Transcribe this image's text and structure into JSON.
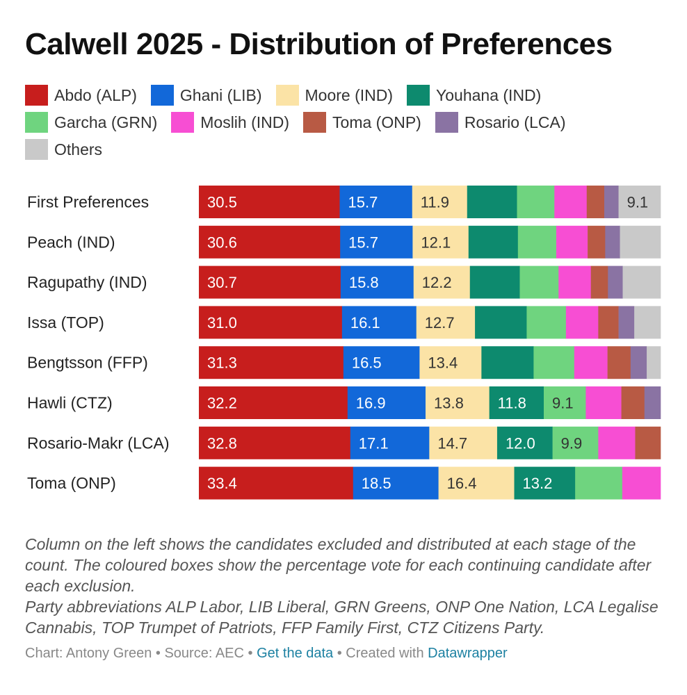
{
  "title": "Calwell 2025 - Distribution of Preferences",
  "chart_data": {
    "type": "bar",
    "orientation": "horizontal-stacked-100",
    "title": "Calwell 2025 - Distribution of Preferences",
    "xlim": [
      0,
      100
    ],
    "legend_position": "top",
    "series": [
      {
        "name": "Abdo (ALP)",
        "color": "#c71e1d"
      },
      {
        "name": "Ghani (LIB)",
        "color": "#1268d9"
      },
      {
        "name": "Moore (IND)",
        "color": "#fbe3a6"
      },
      {
        "name": "Youhana (IND)",
        "color": "#0d8a6e"
      },
      {
        "name": "Garcha (GRN)",
        "color": "#6fd47f"
      },
      {
        "name": "Moslih (IND)",
        "color": "#f74ed3"
      },
      {
        "name": "Toma (ONP)",
        "color": "#b85a44"
      },
      {
        "name": "Rosario (LCA)",
        "color": "#8a73a3"
      },
      {
        "name": "Others",
        "color": "#c9c9c9"
      }
    ],
    "rows": [
      {
        "label": "First Preferences",
        "values": [
          30.5,
          15.7,
          11.9,
          10.8,
          8.1,
          7.0,
          3.8,
          3.1,
          9.1
        ],
        "shown": [
          true,
          true,
          true,
          false,
          false,
          false,
          false,
          false,
          true
        ]
      },
      {
        "label": "Peach (IND)",
        "values": [
          30.6,
          15.7,
          12.1,
          10.7,
          8.3,
          6.8,
          3.8,
          3.2,
          8.8
        ],
        "shown": [
          true,
          true,
          true,
          false,
          false,
          false,
          false,
          false,
          false
        ]
      },
      {
        "label": "Ragupathy (IND)",
        "values": [
          30.7,
          15.8,
          12.2,
          10.8,
          8.4,
          7.0,
          3.7,
          3.2,
          8.2
        ],
        "shown": [
          true,
          true,
          true,
          false,
          false,
          false,
          false,
          false,
          false
        ]
      },
      {
        "label": "Issa (TOP)",
        "values": [
          31.0,
          16.1,
          12.7,
          11.2,
          8.5,
          7.0,
          4.4,
          3.4,
          5.7
        ],
        "shown": [
          true,
          true,
          true,
          false,
          false,
          false,
          false,
          false,
          false
        ]
      },
      {
        "label": "Bengtsson (FFP)",
        "values": [
          31.3,
          16.5,
          13.4,
          11.3,
          8.8,
          7.2,
          5.0,
          3.5,
          3.0
        ],
        "shown": [
          true,
          true,
          true,
          false,
          false,
          false,
          false,
          false,
          false
        ]
      },
      {
        "label": "Hawli (CTZ)",
        "values": [
          32.2,
          16.9,
          13.8,
          11.8,
          9.1,
          7.7,
          5.0,
          3.5,
          0
        ],
        "shown": [
          true,
          true,
          true,
          true,
          true,
          false,
          false,
          false,
          false
        ]
      },
      {
        "label": "Rosario-Makr (LCA)",
        "values": [
          32.8,
          17.1,
          14.7,
          12.0,
          9.9,
          8.0,
          5.5,
          0,
          0
        ],
        "shown": [
          true,
          true,
          true,
          true,
          true,
          false,
          false,
          false,
          false
        ]
      },
      {
        "label": "Toma (ONP)",
        "values": [
          33.4,
          18.5,
          16.4,
          13.2,
          10.2,
          8.3,
          0,
          0,
          0
        ],
        "shown": [
          true,
          true,
          true,
          true,
          false,
          false,
          false,
          false,
          false
        ]
      }
    ]
  },
  "legend_items": [
    {
      "label": "Abdo (ALP)",
      "color": "#c71e1d"
    },
    {
      "label": "Ghani (LIB)",
      "color": "#1268d9"
    },
    {
      "label": "Moore (IND)",
      "color": "#fbe3a6"
    },
    {
      "label": "Youhana (IND)",
      "color": "#0d8a6e"
    },
    {
      "label": "Garcha (GRN)",
      "color": "#6fd47f"
    },
    {
      "label": "Moslih (IND)",
      "color": "#f74ed3"
    },
    {
      "label": "Toma (ONP)",
      "color": "#b85a44"
    },
    {
      "label": "Rosario (LCA)",
      "color": "#8a73a3"
    },
    {
      "label": "Others",
      "color": "#c9c9c9"
    }
  ],
  "notes": {
    "line1": "Column on the left shows the candidates excluded and distributed at each stage of the count. The coloured boxes show the percentage vote for each continuing candidate after each exclusion.",
    "line2": "Party abbreviations ALP Labor, LIB Liberal, GRN Greens, ONP One Nation, LCA Legalise Cannabis, TOP Trumpet of Patriots, FFP Family First, CTZ Citizens Party."
  },
  "footer": {
    "credit": "Chart: Antony Green",
    "separator": " • ",
    "source": "Source: AEC",
    "get_data": "Get the data",
    "created_with": "Created with",
    "tool": "Datawrapper"
  }
}
